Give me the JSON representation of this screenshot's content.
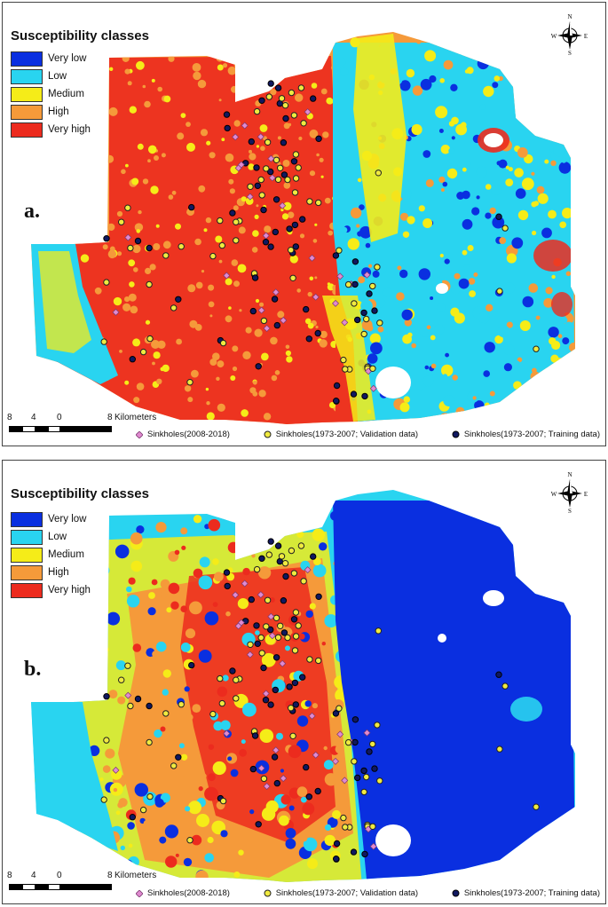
{
  "legend": {
    "title": "Susceptibility classes",
    "classes": [
      {
        "label": "Very low",
        "color": "#0a2fe0"
      },
      {
        "label": "Low",
        "color": "#29d4f0"
      },
      {
        "label": "Medium",
        "color": "#f5ec18"
      },
      {
        "label": "High",
        "color": "#f59a3a"
      },
      {
        "label": "Very high",
        "color": "#ec2b1e"
      }
    ]
  },
  "north_arrow": {
    "n": "N",
    "s": "S",
    "e": "E",
    "w": "W"
  },
  "scale_bar": {
    "ticks": [
      "8",
      "4",
      "0",
      "8"
    ],
    "units": "Kilometers"
  },
  "point_legend": [
    {
      "label": "Sinkholes(2008-2018)",
      "symbol": "pink-diamond-icon",
      "color": "#e08ad0"
    },
    {
      "label": "Sinkholes(1973-2007; Validation data)",
      "symbol": "yellow-circle-icon",
      "color": "#f0ea40"
    },
    {
      "label": "Sinkholes(1973-2007; Training data)",
      "symbol": "navy-circle-icon",
      "color": "#101860"
    }
  ],
  "panels": [
    {
      "label": "a.",
      "description_pattern": "west red/orange, east cyan/yellow"
    },
    {
      "label": "b.",
      "description_pattern": "center orange/red, east dark blue"
    }
  ]
}
